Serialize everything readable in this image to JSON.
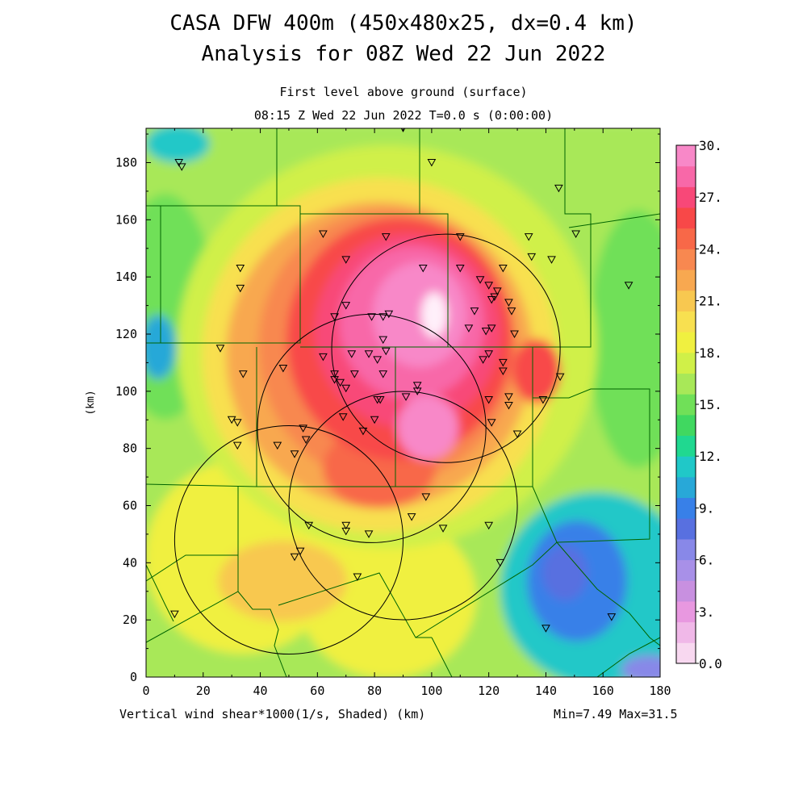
{
  "titles": {
    "line1": "CASA DFW 400m (450x480x25, dx=0.4 km)",
    "line2": "Analysis for 08Z Wed 22 Jun 2022",
    "subtitle1": "First level above ground (surface)",
    "subtitle2": "08:15 Z Wed 22 Jun 2022    T=0.0 s (0:00:00)"
  },
  "footer": {
    "field_label": "Vertical wind shear*1000(1/s, Shaded)  (km)",
    "minmax": "Min=7.49 Max=31.5"
  },
  "chart_data": {
    "type": "heatmap",
    "title": "Vertical wind shear*1000(1/s, Shaded)",
    "xlabel": "(km)",
    "ylabel": "(km)",
    "xlim": [
      0,
      180
    ],
    "ylim": [
      0,
      192
    ],
    "x_ticks": [
      0,
      20,
      40,
      60,
      80,
      100,
      120,
      140,
      160,
      180
    ],
    "y_ticks": [
      0,
      20,
      40,
      60,
      80,
      100,
      120,
      140,
      160,
      180
    ],
    "min": 7.49,
    "max": 31.5,
    "colorbar": {
      "levels": [
        0,
        1.5,
        3,
        4.5,
        6,
        7.5,
        9,
        10.5,
        12,
        13.5,
        15,
        16.5,
        18,
        19.5,
        21,
        22.5,
        24,
        25.5,
        27,
        28.5,
        30
      ],
      "labels": [
        "0.0",
        "3.",
        "6.",
        "9.",
        "12.",
        "15.",
        "18.",
        "21.",
        "24.",
        "27.",
        "30."
      ],
      "colors": [
        "#f8d8f0",
        "#f0b8e8",
        "#e898e0",
        "#c890e0",
        "#a890e8",
        "#8888e8",
        "#5870e0",
        "#3880e8",
        "#28a8d8",
        "#20c8c8",
        "#20d890",
        "#40d860",
        "#70e058",
        "#a8e858",
        "#d0f048",
        "#f0f040",
        "#f8e050",
        "#f8c850",
        "#f8a850",
        "#f88850",
        "#f86848",
        "#f84848",
        "#f84878",
        "#f868a8",
        "#f888c8"
      ]
    },
    "radar_range_rings": [
      {
        "center_x": 105,
        "center_y": 115,
        "radius_km": 40
      },
      {
        "center_x": 79,
        "center_y": 87,
        "radius_km": 40
      },
      {
        "center_x": 90,
        "center_y": 60,
        "radius_km": 40
      },
      {
        "center_x": 50,
        "center_y": 48,
        "radius_km": 40
      }
    ],
    "stations": [
      [
        11.5,
        180
      ],
      [
        12.5,
        178.5
      ],
      [
        90,
        192
      ],
      [
        100,
        180
      ],
      [
        144.5,
        171
      ],
      [
        150.5,
        155
      ],
      [
        134,
        154
      ],
      [
        135,
        147
      ],
      [
        142,
        146
      ],
      [
        169,
        137
      ],
      [
        62,
        155
      ],
      [
        84,
        154
      ],
      [
        110,
        154
      ],
      [
        33,
        143
      ],
      [
        33,
        136
      ],
      [
        70,
        146
      ],
      [
        97,
        143
      ],
      [
        110,
        143
      ],
      [
        125,
        143
      ],
      [
        117,
        139
      ],
      [
        120,
        137
      ],
      [
        123,
        135
      ],
      [
        122,
        133
      ],
      [
        121,
        132
      ],
      [
        127,
        131
      ],
      [
        128,
        128
      ],
      [
        115,
        128
      ],
      [
        70,
        130
      ],
      [
        66,
        126
      ],
      [
        79,
        126
      ],
      [
        85,
        127
      ],
      [
        83,
        126
      ],
      [
        113,
        122
      ],
      [
        119,
        121
      ],
      [
        121,
        122
      ],
      [
        129,
        120
      ],
      [
        83,
        118
      ],
      [
        26,
        115
      ],
      [
        62,
        112
      ],
      [
        72,
        113
      ],
      [
        78,
        113
      ],
      [
        84,
        114
      ],
      [
        81,
        111
      ],
      [
        118,
        111
      ],
      [
        120,
        113
      ],
      [
        125,
        110
      ],
      [
        125,
        107
      ],
      [
        34,
        106
      ],
      [
        48,
        108
      ],
      [
        66,
        106
      ],
      [
        73,
        106
      ],
      [
        83,
        106
      ],
      [
        66,
        104
      ],
      [
        68,
        103
      ],
      [
        70,
        101
      ],
      [
        95,
        102
      ],
      [
        95,
        100
      ],
      [
        91,
        98
      ],
      [
        81,
        97
      ],
      [
        82,
        97
      ],
      [
        120,
        97
      ],
      [
        127,
        98
      ],
      [
        127,
        95
      ],
      [
        139,
        97
      ],
      [
        145,
        105
      ],
      [
        30,
        90
      ],
      [
        32,
        89
      ],
      [
        69,
        91
      ],
      [
        80,
        90
      ],
      [
        121,
        89
      ],
      [
        76,
        86
      ],
      [
        130,
        85
      ],
      [
        55,
        87
      ],
      [
        56,
        83
      ],
      [
        32,
        81
      ],
      [
        46,
        81
      ],
      [
        52,
        78
      ],
      [
        98,
        63
      ],
      [
        93,
        56
      ],
      [
        70,
        53
      ],
      [
        70,
        51
      ],
      [
        78,
        50
      ],
      [
        57,
        53
      ],
      [
        104,
        52
      ],
      [
        120,
        53
      ],
      [
        54,
        44
      ],
      [
        52,
        42
      ],
      [
        74,
        35
      ],
      [
        124,
        40
      ],
      [
        10,
        22
      ],
      [
        140,
        17
      ],
      [
        163,
        21
      ]
    ]
  }
}
